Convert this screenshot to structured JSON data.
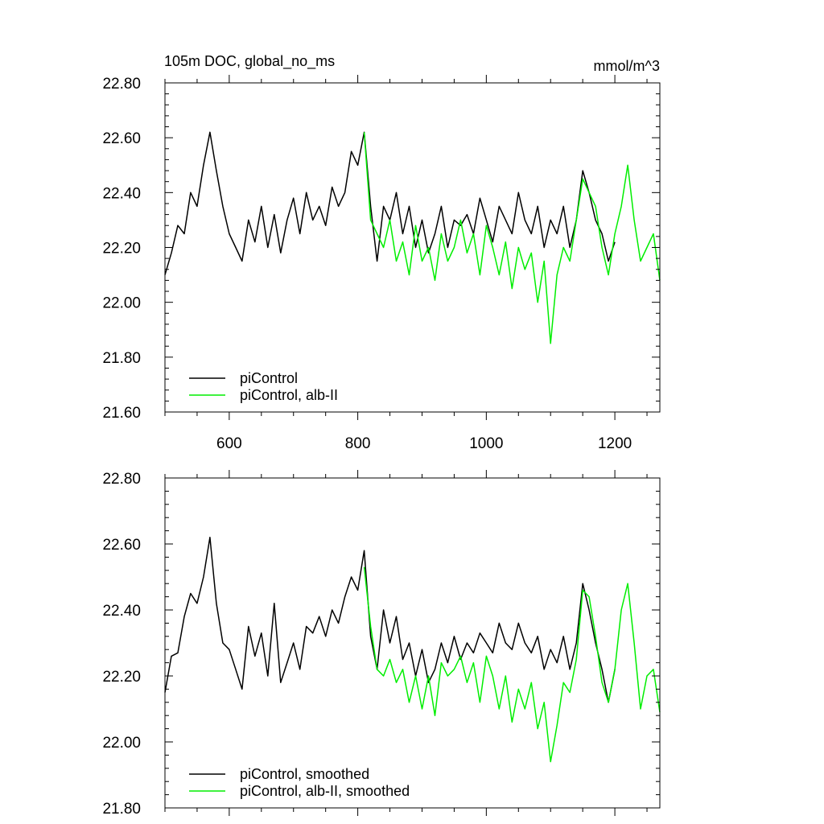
{
  "chart_data": [
    {
      "type": "line",
      "title": "105m DOC, global_no_ms",
      "units": "mmol/m^3",
      "xlim": [
        500,
        1270
      ],
      "ylim": [
        21.6,
        22.8
      ],
      "xticks": [
        600,
        800,
        1000,
        1200
      ],
      "xtick_labels": [
        "600",
        "800",
        "1000",
        "1200"
      ],
      "yticks": [
        21.6,
        21.8,
        22.0,
        22.2,
        22.4,
        22.6,
        22.8
      ],
      "ytick_labels": [
        "21.60",
        "21.80",
        "22.00",
        "22.20",
        "22.40",
        "22.60",
        "22.80"
      ],
      "legend_position": "bottom-left",
      "series": [
        {
          "name": "piControl",
          "color": "#000000",
          "x": [
            500,
            510,
            520,
            530,
            540,
            550,
            560,
            570,
            580,
            590,
            600,
            610,
            620,
            630,
            640,
            650,
            660,
            670,
            680,
            690,
            700,
            710,
            720,
            730,
            740,
            750,
            760,
            770,
            780,
            790,
            800,
            810,
            820,
            830,
            840,
            850,
            860,
            870,
            880,
            890,
            900,
            910,
            920,
            930,
            940,
            950,
            960,
            970,
            980,
            990,
            1000,
            1010,
            1020,
            1030,
            1040,
            1050,
            1060,
            1070,
            1080,
            1090,
            1100,
            1110,
            1120,
            1130,
            1140,
            1150,
            1160,
            1170,
            1180,
            1190,
            1200
          ],
          "y": [
            22.1,
            22.18,
            22.28,
            22.25,
            22.4,
            22.35,
            22.5,
            22.62,
            22.48,
            22.35,
            22.25,
            22.2,
            22.15,
            22.3,
            22.22,
            22.35,
            22.2,
            22.32,
            22.18,
            22.3,
            22.38,
            22.25,
            22.4,
            22.3,
            22.35,
            22.28,
            22.42,
            22.35,
            22.4,
            22.55,
            22.5,
            22.62,
            22.35,
            22.15,
            22.35,
            22.3,
            22.4,
            22.25,
            22.35,
            22.2,
            22.3,
            22.18,
            22.25,
            22.35,
            22.2,
            22.3,
            22.28,
            22.32,
            22.25,
            22.38,
            22.3,
            22.22,
            22.35,
            22.3,
            22.25,
            22.4,
            22.3,
            22.25,
            22.35,
            22.2,
            22.3,
            22.25,
            22.35,
            22.2,
            22.3,
            22.48,
            22.4,
            22.3,
            22.25,
            22.15,
            22.22
          ]
        },
        {
          "name": "piControl, alb-II",
          "color": "#00ee00",
          "x": [
            810,
            820,
            830,
            840,
            850,
            860,
            870,
            880,
            890,
            900,
            910,
            920,
            930,
            940,
            950,
            960,
            970,
            980,
            990,
            1000,
            1010,
            1020,
            1030,
            1040,
            1050,
            1060,
            1070,
            1080,
            1090,
            1100,
            1110,
            1120,
            1130,
            1140,
            1150,
            1160,
            1170,
            1180,
            1190,
            1200,
            1210,
            1220,
            1230,
            1240,
            1250,
            1260,
            1270
          ],
          "y": [
            22.62,
            22.3,
            22.25,
            22.2,
            22.3,
            22.15,
            22.22,
            22.1,
            22.28,
            22.15,
            22.2,
            22.08,
            22.25,
            22.15,
            22.2,
            22.3,
            22.18,
            22.25,
            22.1,
            22.28,
            22.2,
            22.1,
            22.22,
            22.05,
            22.2,
            22.12,
            22.18,
            22.0,
            22.15,
            21.85,
            22.1,
            22.2,
            22.15,
            22.3,
            22.45,
            22.4,
            22.35,
            22.2,
            22.1,
            22.25,
            22.35,
            22.5,
            22.3,
            22.15,
            22.2,
            22.25,
            22.08
          ]
        }
      ]
    },
    {
      "type": "line",
      "xlim": [
        500,
        1270
      ],
      "ylim": [
        21.8,
        22.8
      ],
      "xticks": [
        600,
        800,
        1000,
        1200
      ],
      "yticks": [
        21.8,
        22.0,
        22.2,
        22.4,
        22.6,
        22.8
      ],
      "ytick_labels": [
        "21.80",
        "22.00",
        "22.20",
        "22.40",
        "22.60",
        "22.80"
      ],
      "legend_position": "bottom-left",
      "series": [
        {
          "name": "piControl, smoothed",
          "color": "#000000",
          "x": [
            500,
            510,
            520,
            530,
            540,
            550,
            560,
            570,
            580,
            590,
            600,
            610,
            620,
            630,
            640,
            650,
            660,
            670,
            680,
            690,
            700,
            710,
            720,
            730,
            740,
            750,
            760,
            770,
            780,
            790,
            800,
            810,
            820,
            830,
            840,
            850,
            860,
            870,
            880,
            890,
            900,
            910,
            920,
            930,
            940,
            950,
            960,
            970,
            980,
            990,
            1000,
            1010,
            1020,
            1030,
            1040,
            1050,
            1060,
            1070,
            1080,
            1090,
            1100,
            1110,
            1120,
            1130,
            1140,
            1150,
            1160,
            1170,
            1180,
            1190,
            1200
          ],
          "y": [
            22.15,
            22.26,
            22.27,
            22.38,
            22.45,
            22.42,
            22.5,
            22.62,
            22.42,
            22.3,
            22.28,
            22.22,
            22.16,
            22.35,
            22.26,
            22.33,
            22.2,
            22.42,
            22.18,
            22.24,
            22.3,
            22.22,
            22.35,
            22.33,
            22.38,
            22.32,
            22.4,
            22.36,
            22.44,
            22.5,
            22.46,
            22.58,
            22.32,
            22.22,
            22.4,
            22.3,
            22.38,
            22.25,
            22.3,
            22.2,
            22.28,
            22.18,
            22.22,
            22.3,
            22.24,
            22.32,
            22.25,
            22.3,
            22.27,
            22.33,
            22.3,
            22.27,
            22.36,
            22.3,
            22.28,
            22.36,
            22.3,
            22.27,
            22.32,
            22.22,
            22.28,
            22.24,
            22.32,
            22.22,
            22.3,
            22.48,
            22.4,
            22.3,
            22.22,
            22.12,
            22.22
          ]
        },
        {
          "name": "piControl, alb-II, smoothed",
          "color": "#00ee00",
          "x": [
            810,
            820,
            830,
            840,
            850,
            860,
            870,
            880,
            890,
            900,
            910,
            920,
            930,
            940,
            950,
            960,
            970,
            980,
            990,
            1000,
            1010,
            1020,
            1030,
            1040,
            1050,
            1060,
            1070,
            1080,
            1090,
            1100,
            1110,
            1120,
            1130,
            1140,
            1150,
            1160,
            1170,
            1180,
            1190,
            1200,
            1210,
            1220,
            1230,
            1240,
            1250,
            1260,
            1270
          ],
          "y": [
            22.53,
            22.35,
            22.22,
            22.2,
            22.25,
            22.18,
            22.22,
            22.12,
            22.2,
            22.1,
            22.2,
            22.08,
            22.24,
            22.2,
            22.22,
            22.26,
            22.18,
            22.24,
            22.12,
            22.26,
            22.2,
            22.1,
            22.2,
            22.06,
            22.16,
            22.1,
            22.18,
            22.04,
            22.12,
            21.94,
            22.05,
            22.18,
            22.15,
            22.25,
            22.46,
            22.44,
            22.32,
            22.18,
            22.12,
            22.22,
            22.4,
            22.48,
            22.3,
            22.1,
            22.2,
            22.22,
            22.09
          ]
        }
      ]
    }
  ]
}
